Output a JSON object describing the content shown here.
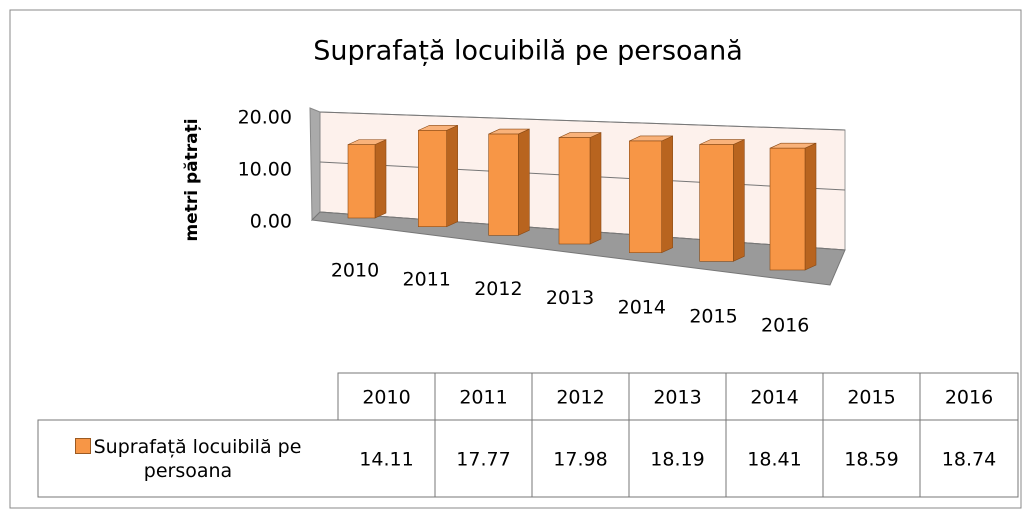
{
  "chart_data": {
    "type": "bar",
    "title": "Suprafață locuibilă pe persoană",
    "y_label": "metri pătrați",
    "categories": [
      "2010",
      "2011",
      "2012",
      "2013",
      "2014",
      "2015",
      "2016"
    ],
    "series": [
      {
        "name": "Suprafață locuibilă pe persoana",
        "color": "#f79646",
        "values": [
          14.11,
          17.77,
          17.98,
          18.19,
          18.41,
          18.59,
          18.74
        ]
      }
    ],
    "ylim": [
      0,
      20
    ],
    "yticks": [
      {
        "value": 0,
        "label": "0.00"
      },
      {
        "value": 10,
        "label": "10.00"
      },
      {
        "value": 20,
        "label": "20.00"
      }
    ],
    "grid": true
  }
}
